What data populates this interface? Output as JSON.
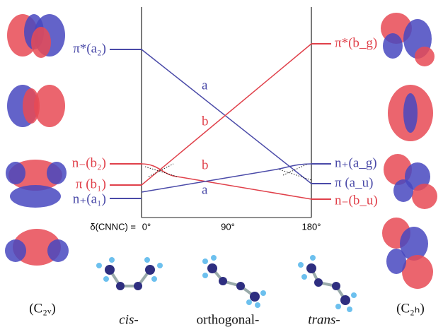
{
  "left_levels": [
    "π*(a₂)",
    "n₋(b₂)",
    "π (b₁)",
    "n₊(a₁)"
  ],
  "right_levels": [
    "π*(b_g)",
    "n₊(a_g)",
    "π (a_u)",
    "n₋(b_u)"
  ],
  "line_labels": [
    "a",
    "b",
    "b",
    "a"
  ],
  "axis": {
    "label": "δ(CNNC) =",
    "ticks": [
      "0°",
      "90°",
      "180°"
    ]
  },
  "symmetry": {
    "left": "(C₂ᵥ)",
    "right": "(C₂ₕ)"
  },
  "conformers": [
    "cis-",
    "orthogonal-",
    "trans-"
  ]
}
